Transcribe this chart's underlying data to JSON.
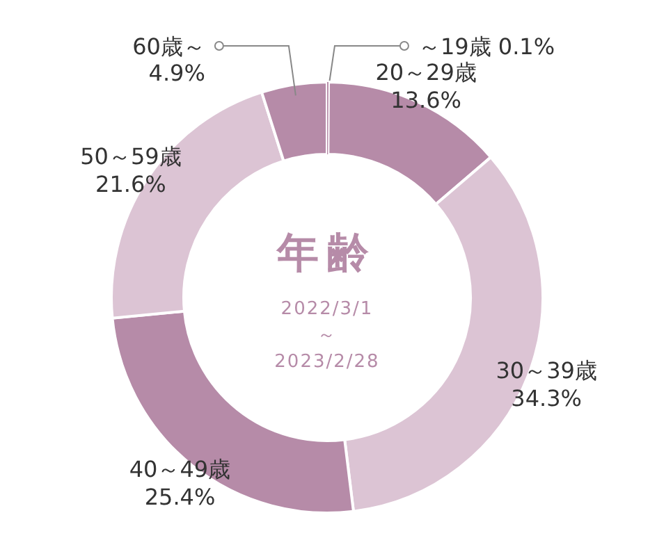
{
  "chart_data": {
    "type": "donut",
    "title": "年齢",
    "subtitle": "2022/3/1\n～\n2023/2/28",
    "categories": [
      "～19歳",
      "20～29歳",
      "30～39歳",
      "40～49歳",
      "50～59歳",
      "60歳～"
    ],
    "values": [
      0.1,
      13.6,
      34.3,
      25.4,
      21.6,
      4.9
    ],
    "value_labels": [
      "0.1%",
      "13.6%",
      "34.3%",
      "25.4%",
      "21.6%",
      "4.9%"
    ],
    "colors": [
      "#b68ba8",
      "#b68ba8",
      "#dcc4d4",
      "#b68ba8",
      "#dcc4d4",
      "#b68ba8"
    ]
  }
}
